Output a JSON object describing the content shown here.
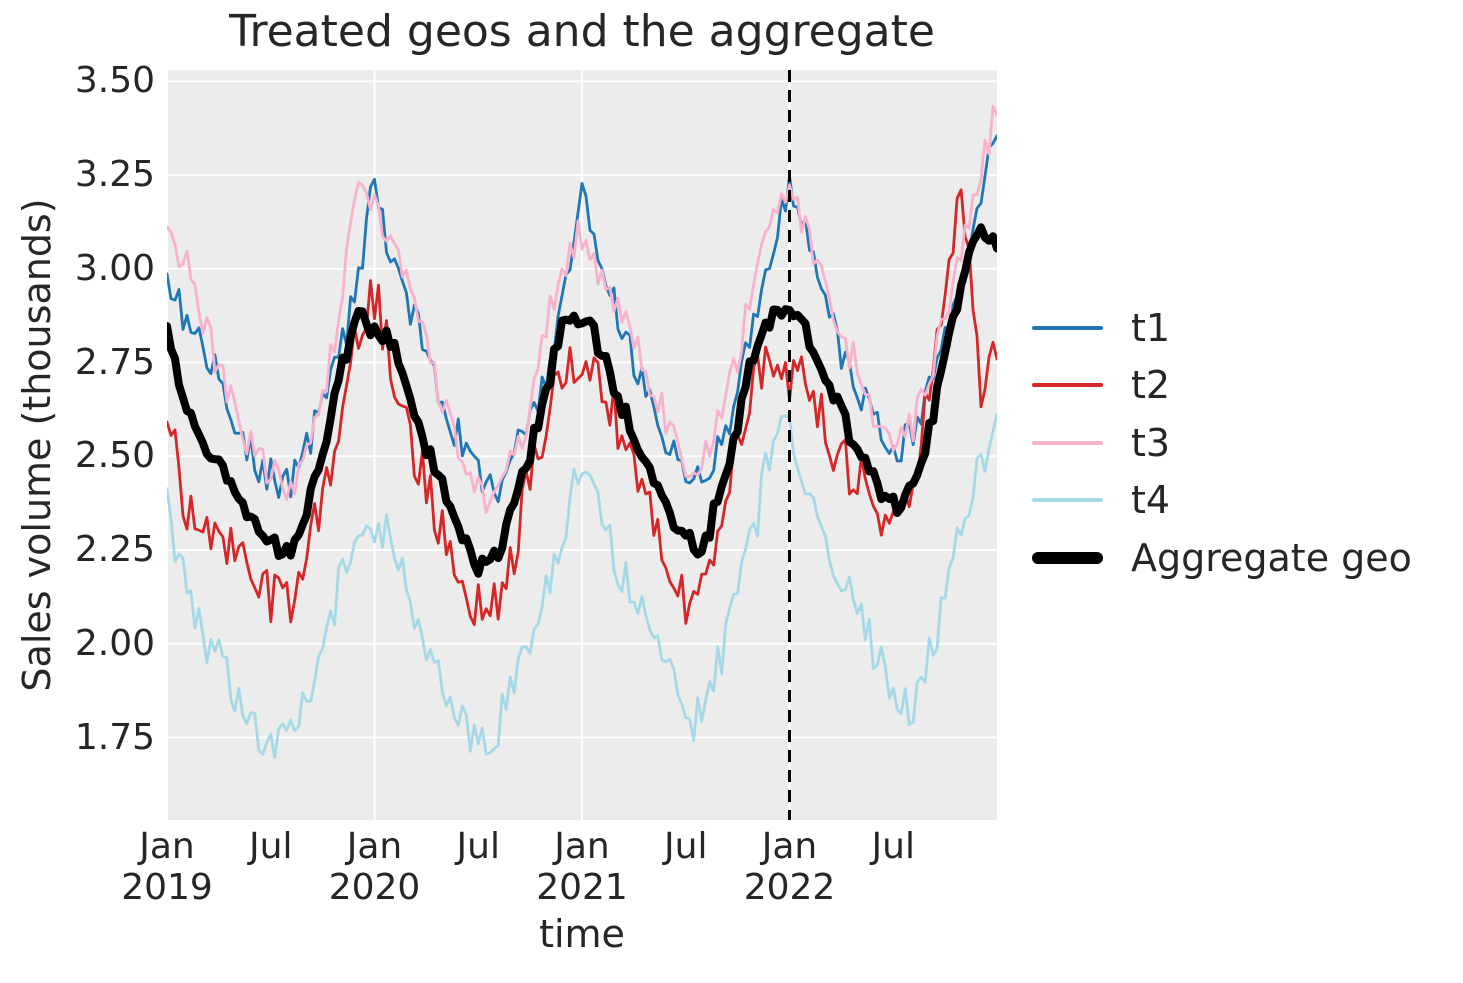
{
  "chart_data": {
    "type": "line",
    "title": "Treated geos and the aggregate",
    "xlabel": "time",
    "ylabel": "Sales volume (thousands)",
    "x_unit": "months since Jan 2019 (monthly points, rendered weekly)",
    "xlim": [
      0,
      48
    ],
    "ylim": [
      1.53,
      3.53
    ],
    "y_ticks": [
      3.5,
      3.25,
      3.0,
      2.75,
      2.5,
      2.25,
      2.0,
      1.75
    ],
    "x_ticks": [
      {
        "m": 0,
        "label": "Jan",
        "year": "2019"
      },
      {
        "m": 6,
        "label": "Jul"
      },
      {
        "m": 12,
        "label": "Jan",
        "year": "2020"
      },
      {
        "m": 18,
        "label": "Jul"
      },
      {
        "m": 24,
        "label": "Jan",
        "year": "2021"
      },
      {
        "m": 30,
        "label": "Jul"
      },
      {
        "m": 36,
        "label": "Jan",
        "year": "2022"
      },
      {
        "m": 42,
        "label": "Jul"
      }
    ],
    "grid_months": [
      0,
      12,
      24,
      36
    ],
    "grid_color": "#ffffff",
    "background": "#ececec",
    "weekly_points": 209,
    "treatment_line": {
      "month": 36,
      "date_label": "Jan 2022",
      "color": "#000000",
      "style": "dashed"
    },
    "series": [
      {
        "name": "t1",
        "color": "#1f77b4",
        "width": 2.8,
        "noise": 0.05,
        "seed": 3,
        "monthly_values": [
          2.97,
          2.87,
          2.78,
          2.7,
          2.58,
          2.5,
          2.45,
          2.43,
          2.52,
          2.63,
          2.78,
          2.95,
          3.2,
          3.0,
          2.9,
          2.78,
          2.64,
          2.54,
          2.45,
          2.42,
          2.5,
          2.6,
          2.73,
          2.95,
          3.18,
          3.02,
          2.88,
          2.75,
          2.62,
          2.52,
          2.45,
          2.43,
          2.53,
          2.68,
          2.85,
          3.05,
          3.2,
          3.08,
          2.92,
          2.78,
          2.67,
          2.58,
          2.52,
          2.56,
          2.66,
          2.8,
          2.95,
          3.18,
          3.4
        ]
      },
      {
        "name": "t2",
        "color": "#d62728",
        "width": 2.8,
        "noise": 0.075,
        "seed": 7,
        "monthly_values": [
          2.62,
          2.4,
          2.32,
          2.3,
          2.22,
          2.16,
          2.12,
          2.1,
          2.22,
          2.38,
          2.58,
          2.82,
          2.93,
          2.72,
          2.55,
          2.42,
          2.28,
          2.15,
          2.1,
          2.12,
          2.24,
          2.44,
          2.62,
          2.73,
          2.7,
          2.73,
          2.6,
          2.48,
          2.36,
          2.22,
          2.12,
          2.18,
          2.32,
          2.52,
          2.7,
          2.73,
          2.72,
          2.7,
          2.58,
          2.5,
          2.44,
          2.36,
          2.3,
          2.42,
          2.65,
          2.95,
          3.18,
          2.7,
          2.75
        ]
      },
      {
        "name": "t3",
        "color": "#f8b2cd",
        "width": 2.8,
        "noise": 0.05,
        "seed": 11,
        "monthly_values": [
          3.1,
          3.02,
          2.88,
          2.74,
          2.62,
          2.52,
          2.46,
          2.42,
          2.52,
          2.66,
          2.9,
          3.2,
          3.15,
          3.06,
          2.96,
          2.8,
          2.64,
          2.52,
          2.42,
          2.38,
          2.5,
          2.64,
          2.86,
          3.02,
          3.08,
          3.0,
          2.9,
          2.8,
          2.7,
          2.57,
          2.47,
          2.5,
          2.62,
          2.77,
          2.96,
          3.1,
          3.18,
          3.1,
          2.96,
          2.84,
          2.72,
          2.6,
          2.52,
          2.57,
          2.7,
          2.87,
          3.06,
          3.24,
          3.42
        ]
      },
      {
        "name": "t4",
        "color": "#a6d9e7",
        "width": 2.8,
        "noise": 0.06,
        "seed": 17,
        "monthly_values": [
          2.36,
          2.16,
          2.02,
          1.96,
          1.87,
          1.8,
          1.73,
          1.76,
          1.86,
          1.97,
          2.16,
          2.29,
          2.33,
          2.26,
          2.12,
          2.0,
          1.9,
          1.8,
          1.72,
          1.77,
          1.89,
          2.03,
          2.16,
          2.31,
          2.48,
          2.36,
          2.22,
          2.12,
          2.06,
          1.96,
          1.8,
          1.84,
          1.96,
          2.13,
          2.31,
          2.52,
          2.56,
          2.42,
          2.29,
          2.17,
          2.07,
          1.97,
          1.89,
          1.84,
          1.96,
          2.11,
          2.31,
          2.46,
          2.56
        ]
      },
      {
        "name": "Aggregate geo",
        "color": "#000000",
        "width": 8,
        "noise": 0.028,
        "seed": 23,
        "monthly_values": [
          2.84,
          2.64,
          2.53,
          2.49,
          2.39,
          2.31,
          2.27,
          2.25,
          2.36,
          2.51,
          2.71,
          2.86,
          2.84,
          2.79,
          2.66,
          2.53,
          2.41,
          2.31,
          2.21,
          2.23,
          2.36,
          2.51,
          2.69,
          2.86,
          2.87,
          2.79,
          2.66,
          2.56,
          2.46,
          2.35,
          2.29,
          2.27,
          2.41,
          2.59,
          2.79,
          2.86,
          2.89,
          2.83,
          2.71,
          2.61,
          2.51,
          2.43,
          2.37,
          2.41,
          2.56,
          2.76,
          2.96,
          3.11,
          3.05
        ]
      }
    ]
  }
}
